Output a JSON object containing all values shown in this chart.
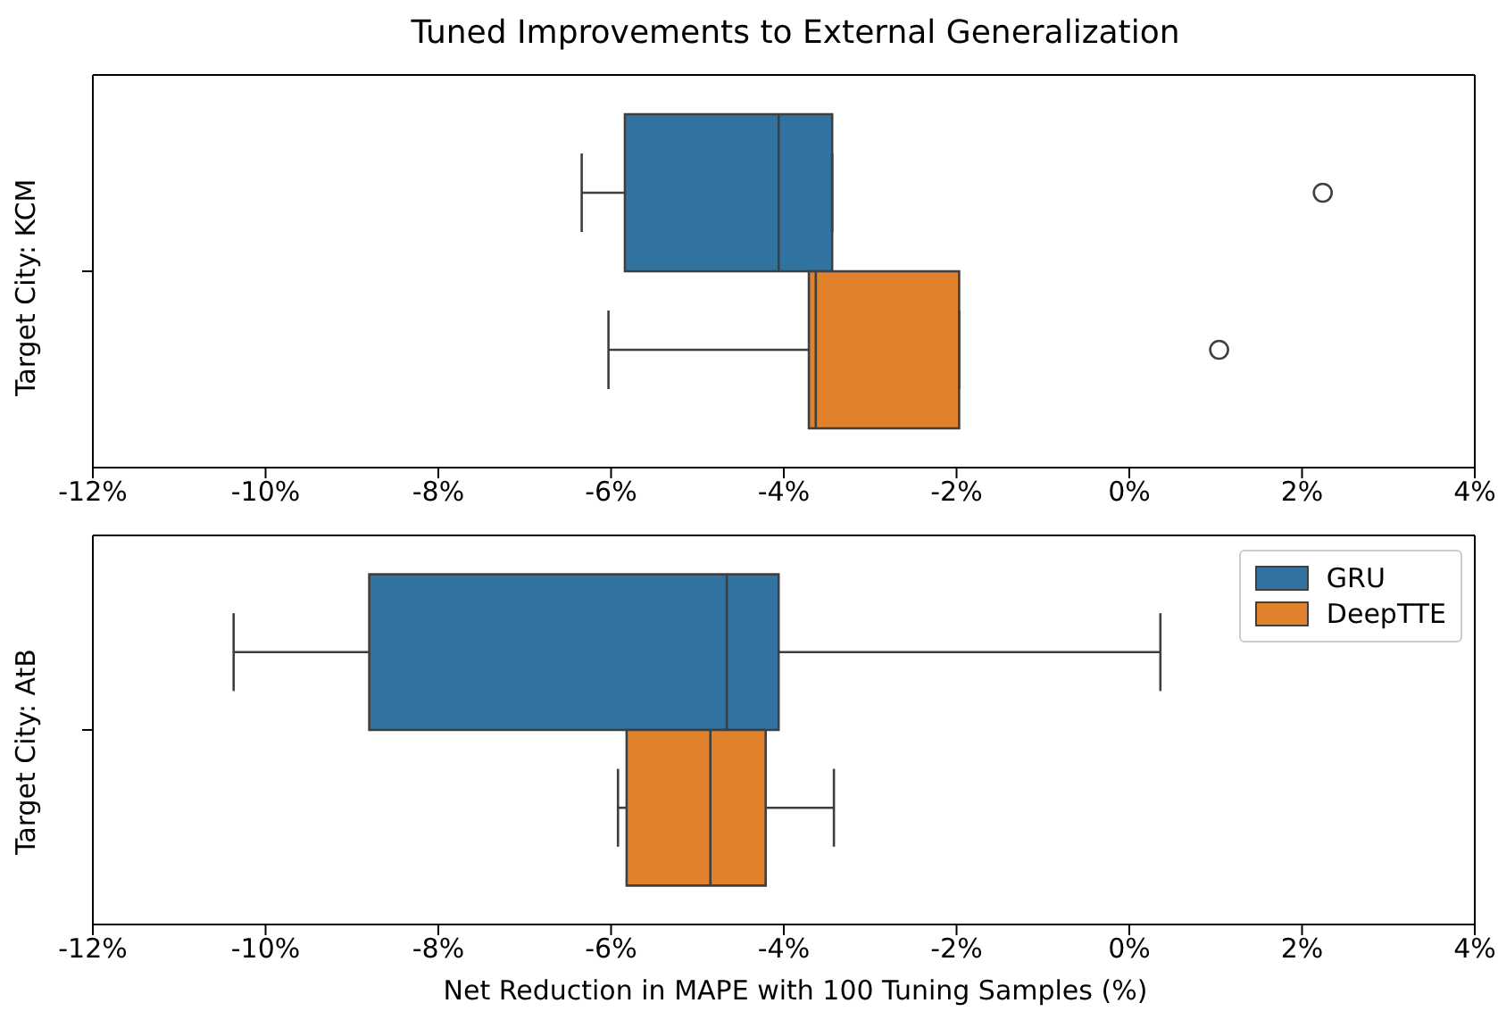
{
  "chart_data": [
    {
      "type": "box",
      "title": "Tuned Improvements to External Generalization",
      "ylabel": "Target City: KCM",
      "orientation": "horizontal",
      "categories": [
        null
      ],
      "xlim": [
        -12,
        4
      ],
      "xticks": [
        {
          "value": -12,
          "label": "-12%"
        },
        {
          "value": -10,
          "label": "-10%"
        },
        {
          "value": -8,
          "label": "-8%"
        },
        {
          "value": -6,
          "label": "-6%"
        },
        {
          "value": -4,
          "label": "-4%"
        },
        {
          "value": -2,
          "label": "-2%"
        },
        {
          "value": 0,
          "label": "0%"
        },
        {
          "value": 2,
          "label": "2%"
        },
        {
          "value": 4,
          "label": "4%"
        }
      ],
      "legend": false,
      "series": [
        {
          "color": "#3274a1",
          "boxes": [
            {
              "low": -6.34,
              "q1": -5.84,
              "median": -4.06,
              "q3": -3.44,
              "high": -3.44,
              "outliers": [
                2.24
              ]
            }
          ]
        },
        {
          "color": "#e1812c",
          "boxes": [
            {
              "low": -6.03,
              "q1": -3.71,
              "median": -3.63,
              "q3": -1.97,
              "high": -1.97,
              "outliers": [
                1.04
              ]
            }
          ]
        }
      ]
    },
    {
      "type": "box",
      "xlabel": "Net Reduction in MAPE with 100 Tuning Samples (%)",
      "ylabel": "Target City: AtB",
      "orientation": "horizontal",
      "categories": [
        null
      ],
      "xlim": [
        -12,
        4
      ],
      "xticks": [
        {
          "value": -12,
          "label": "-12%"
        },
        {
          "value": -10,
          "label": "-10%"
        },
        {
          "value": -8,
          "label": "-8%"
        },
        {
          "value": -6,
          "label": "-6%"
        },
        {
          "value": -4,
          "label": "-4%"
        },
        {
          "value": -2,
          "label": "-2%"
        },
        {
          "value": 0,
          "label": "0%"
        },
        {
          "value": 2,
          "label": "2%"
        },
        {
          "value": 4,
          "label": "4%"
        }
      ],
      "legend": "top right",
      "series": [
        {
          "name": "GRU",
          "color": "#3274a1",
          "boxes": [
            {
              "low": -10.37,
              "q1": -8.8,
              "median": -4.66,
              "q3": -4.06,
              "high": 0.36
            }
          ]
        },
        {
          "name": "DeepTTE",
          "color": "#e1812c",
          "boxes": [
            {
              "low": -5.92,
              "q1": -5.82,
              "median": -4.85,
              "q3": -4.21,
              "high": -3.42
            }
          ]
        }
      ]
    }
  ]
}
